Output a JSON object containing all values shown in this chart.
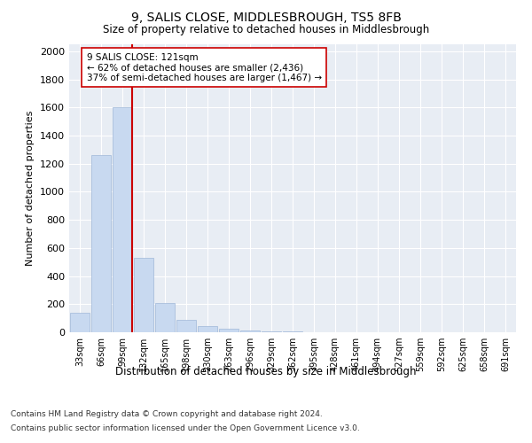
{
  "title": "9, SALIS CLOSE, MIDDLESBROUGH, TS5 8FB",
  "subtitle": "Size of property relative to detached houses in Middlesbrough",
  "xlabel": "Distribution of detached houses by size in Middlesbrough",
  "ylabel": "Number of detached properties",
  "categories": [
    "33sqm",
    "66sqm",
    "99sqm",
    "132sqm",
    "165sqm",
    "198sqm",
    "230sqm",
    "263sqm",
    "296sqm",
    "329sqm",
    "362sqm",
    "395sqm",
    "428sqm",
    "461sqm",
    "494sqm",
    "527sqm",
    "559sqm",
    "592sqm",
    "625sqm",
    "658sqm",
    "691sqm"
  ],
  "bar_heights": [
    140,
    1260,
    1600,
    530,
    210,
    90,
    45,
    25,
    15,
    8,
    5,
    2,
    1,
    0,
    0,
    0,
    0,
    0,
    0,
    0,
    0
  ],
  "bar_color": "#c8d9f0",
  "bar_edge_color": "#a0b8d8",
  "vline_color": "#cc0000",
  "annotation_text": "9 SALIS CLOSE: 121sqm\n← 62% of detached houses are smaller (2,436)\n37% of semi-detached houses are larger (1,467) →",
  "annotation_box_color": "#ffffff",
  "annotation_box_edge": "#cc0000",
  "ylim": [
    0,
    2050
  ],
  "yticks": [
    0,
    200,
    400,
    600,
    800,
    1000,
    1200,
    1400,
    1600,
    1800,
    2000
  ],
  "background_color": "#e8edf4",
  "grid_color": "#ffffff",
  "footer_line1": "Contains HM Land Registry data © Crown copyright and database right 2024.",
  "footer_line2": "Contains public sector information licensed under the Open Government Licence v3.0."
}
